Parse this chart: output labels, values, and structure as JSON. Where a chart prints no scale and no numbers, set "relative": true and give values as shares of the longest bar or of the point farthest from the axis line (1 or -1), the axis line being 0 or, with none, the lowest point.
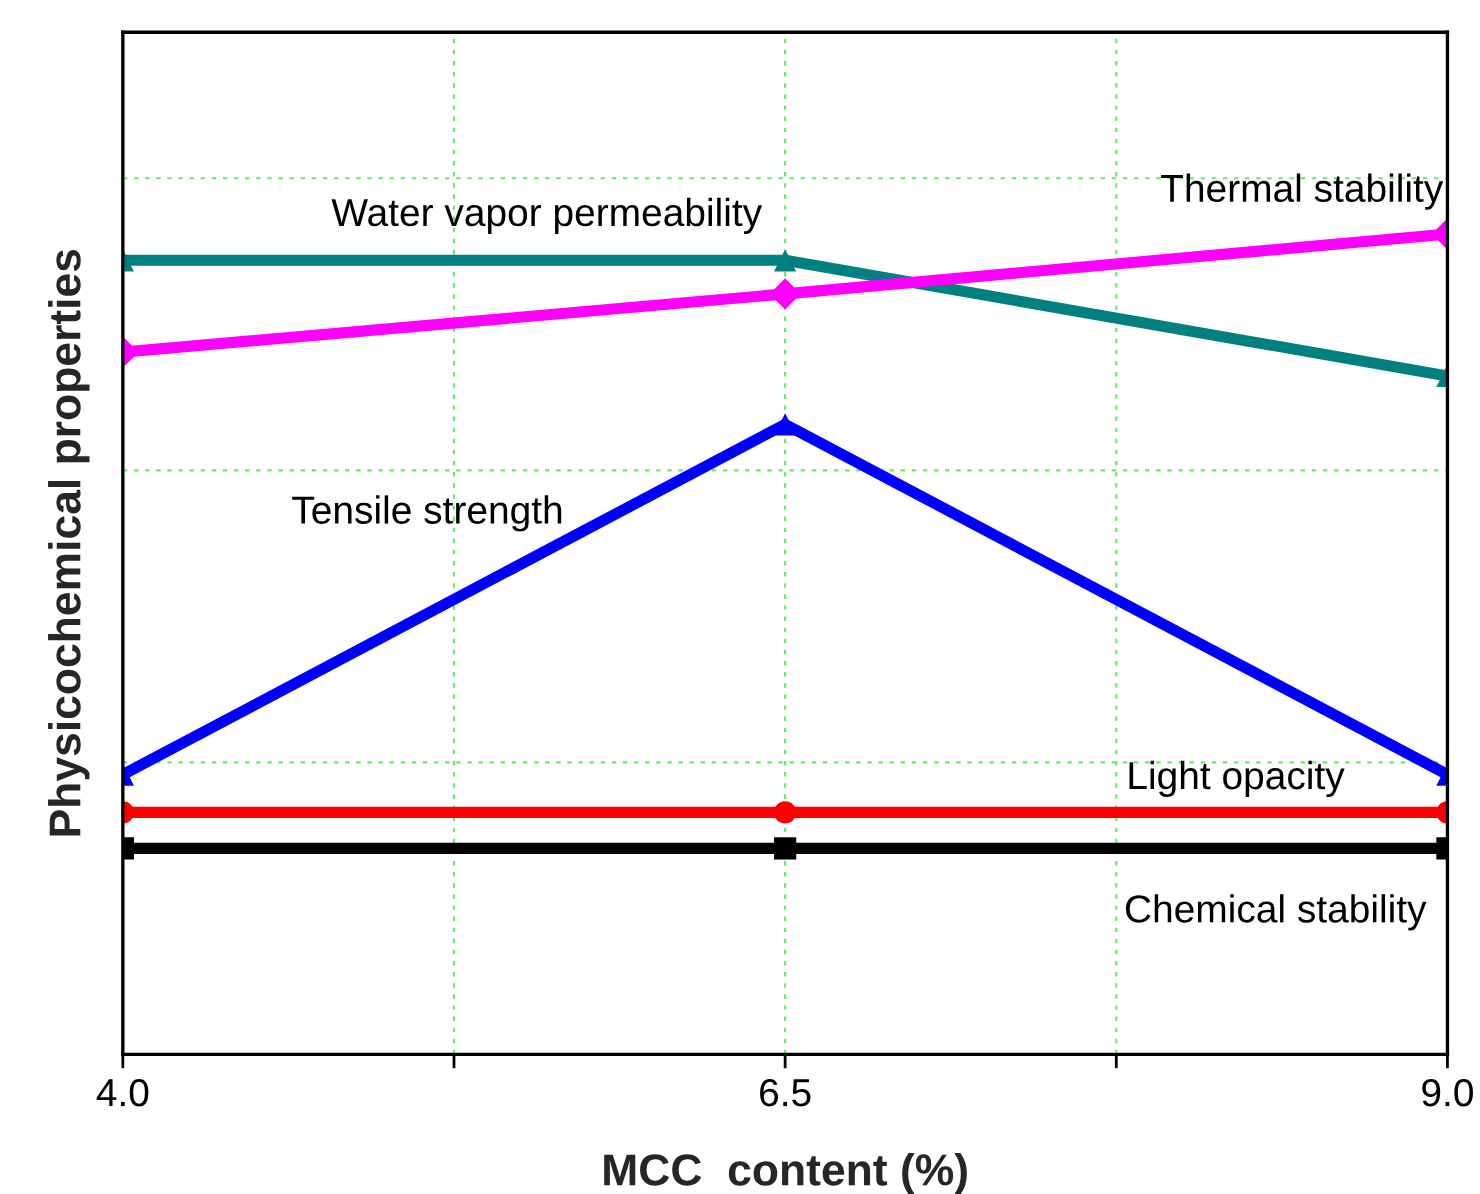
{
  "chart_data": {
    "type": "line",
    "relative": true,
    "xlabel": "MCC  content (%)",
    "ylabel": "Physicochemical properties",
    "x": [
      4.0,
      6.5,
      9.0
    ],
    "xlim": [
      4.0,
      9.0
    ],
    "xticks": [
      {
        "value": 4.0,
        "label": "4.0"
      },
      {
        "value": 5.25,
        "label": null
      },
      {
        "value": 6.5,
        "label": "6.5"
      },
      {
        "value": 7.75,
        "label": null
      },
      {
        "value": 9.0,
        "label": "9.0"
      }
    ],
    "grid": true,
    "legend": false,
    "line_style": "solid",
    "series": [
      {
        "name": "Water vapor permeability",
        "color": "#008080",
        "marker": "triangle",
        "values": [
          0.968,
          0.968,
          0.827
        ]
      },
      {
        "name": "Thermal stability",
        "color": "#ff00ff",
        "marker": "diamond",
        "values": [
          0.856,
          0.927,
          1.0
        ]
      },
      {
        "name": "Tensile strength",
        "color": "#0000ff",
        "marker": "triangle",
        "values": [
          0.341,
          0.768,
          0.341
        ]
      },
      {
        "name": "Light opacity",
        "color": "#ff0000",
        "marker": "circle",
        "values": [
          0.295,
          0.295,
          0.295
        ]
      },
      {
        "name": "Chemical stability",
        "color": "#000000",
        "marker": "square",
        "values": [
          0.251,
          0.251,
          0.251
        ]
      }
    ]
  }
}
